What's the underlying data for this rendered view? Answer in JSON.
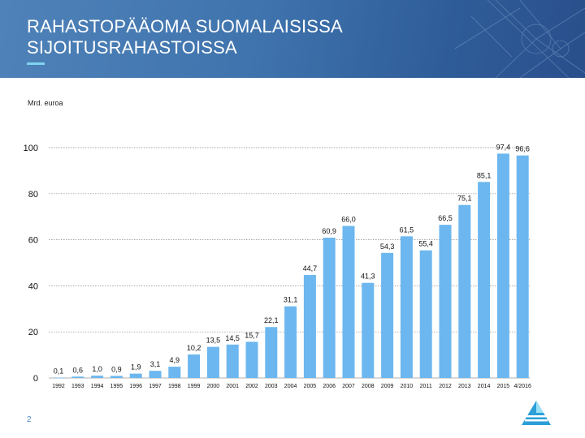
{
  "slide": {
    "title_line1": "RAHASTOPÄÄOMA SUOMALAISISSA",
    "title_line2": "SIJOITUSRAHASTOISSA",
    "page_number": "2"
  },
  "colors": {
    "bar": "#6cb7ef",
    "grid": "#888888",
    "text": "#111111",
    "accent": "#7fd3ee"
  },
  "chart_data": {
    "type": "bar",
    "title": "",
    "ylabel": "Mrd. euroa",
    "xlabel": "",
    "ylim": [
      0,
      100
    ],
    "yticks": [
      "0",
      "20",
      "40",
      "60",
      "80",
      "100"
    ],
    "grid": true,
    "categories": [
      "1992",
      "1993",
      "1994",
      "1995",
      "1996",
      "1997",
      "1998",
      "1999",
      "2000",
      "2001",
      "2002",
      "2003",
      "2004",
      "2005",
      "2006",
      "2007",
      "2008",
      "2009",
      "2010",
      "2011",
      "2012",
      "2013",
      "2014",
      "2015",
      "4/2016"
    ],
    "values": [
      0.1,
      0.6,
      1.0,
      0.9,
      1.9,
      3.1,
      4.9,
      10.2,
      13.5,
      14.5,
      15.7,
      22.1,
      31.1,
      44.7,
      60.9,
      66.0,
      41.3,
      54.3,
      61.5,
      55.4,
      66.5,
      75.1,
      85.1,
      97.4,
      96.6
    ],
    "value_labels": [
      "0,1",
      "0,6",
      "1,0",
      "0,9",
      "1,9",
      "3,1",
      "4,9",
      "10,2",
      "13,5",
      "14,5",
      "15,7",
      "22,1",
      "31,1",
      "44,7",
      "60,9",
      "66,0",
      "41,3",
      "54,3",
      "61,5",
      "55,4",
      "66,5",
      "75,1",
      "85,1",
      "97,4",
      "96,6"
    ]
  }
}
